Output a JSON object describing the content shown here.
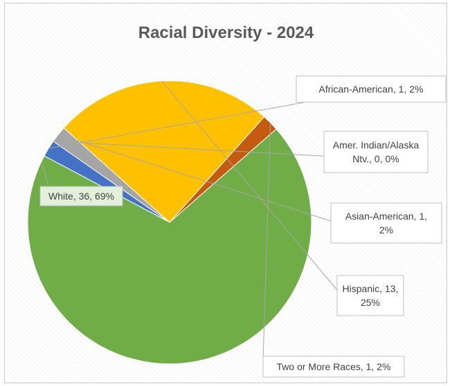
{
  "chart_data": {
    "type": "pie",
    "title": "Racial Diversity - 2024",
    "slices": [
      {
        "name": "African-American",
        "value": 1,
        "percent": 2,
        "color": "#4472c4",
        "label_lines": [
          "African-American, 1, 2%"
        ]
      },
      {
        "name": "Amer. Indian/Alaska Ntv.",
        "value": 0,
        "percent": 0,
        "color": "#264478",
        "label_lines": [
          "Amer. Indian/Alaska",
          "Ntv., 0, 0%"
        ]
      },
      {
        "name": "Asian-American",
        "value": 1,
        "percent": 2,
        "color": "#a5a5a5",
        "label_lines": [
          "Asian-American, 1,",
          "2%"
        ]
      },
      {
        "name": "Hispanic",
        "value": 13,
        "percent": 25,
        "color": "#ffc000",
        "label_lines": [
          "Hispanic, 13,",
          "25%"
        ]
      },
      {
        "name": "Two or More Races",
        "value": 1,
        "percent": 2,
        "color": "#c55a11",
        "label_lines": [
          "Two or More Races, 1, 2%"
        ]
      },
      {
        "name": "White",
        "value": 36,
        "percent": 69,
        "color": "#70ad47",
        "label_lines": [
          "White, 36, 69%"
        ]
      }
    ],
    "legend": "none",
    "data_labels": "callouts"
  }
}
